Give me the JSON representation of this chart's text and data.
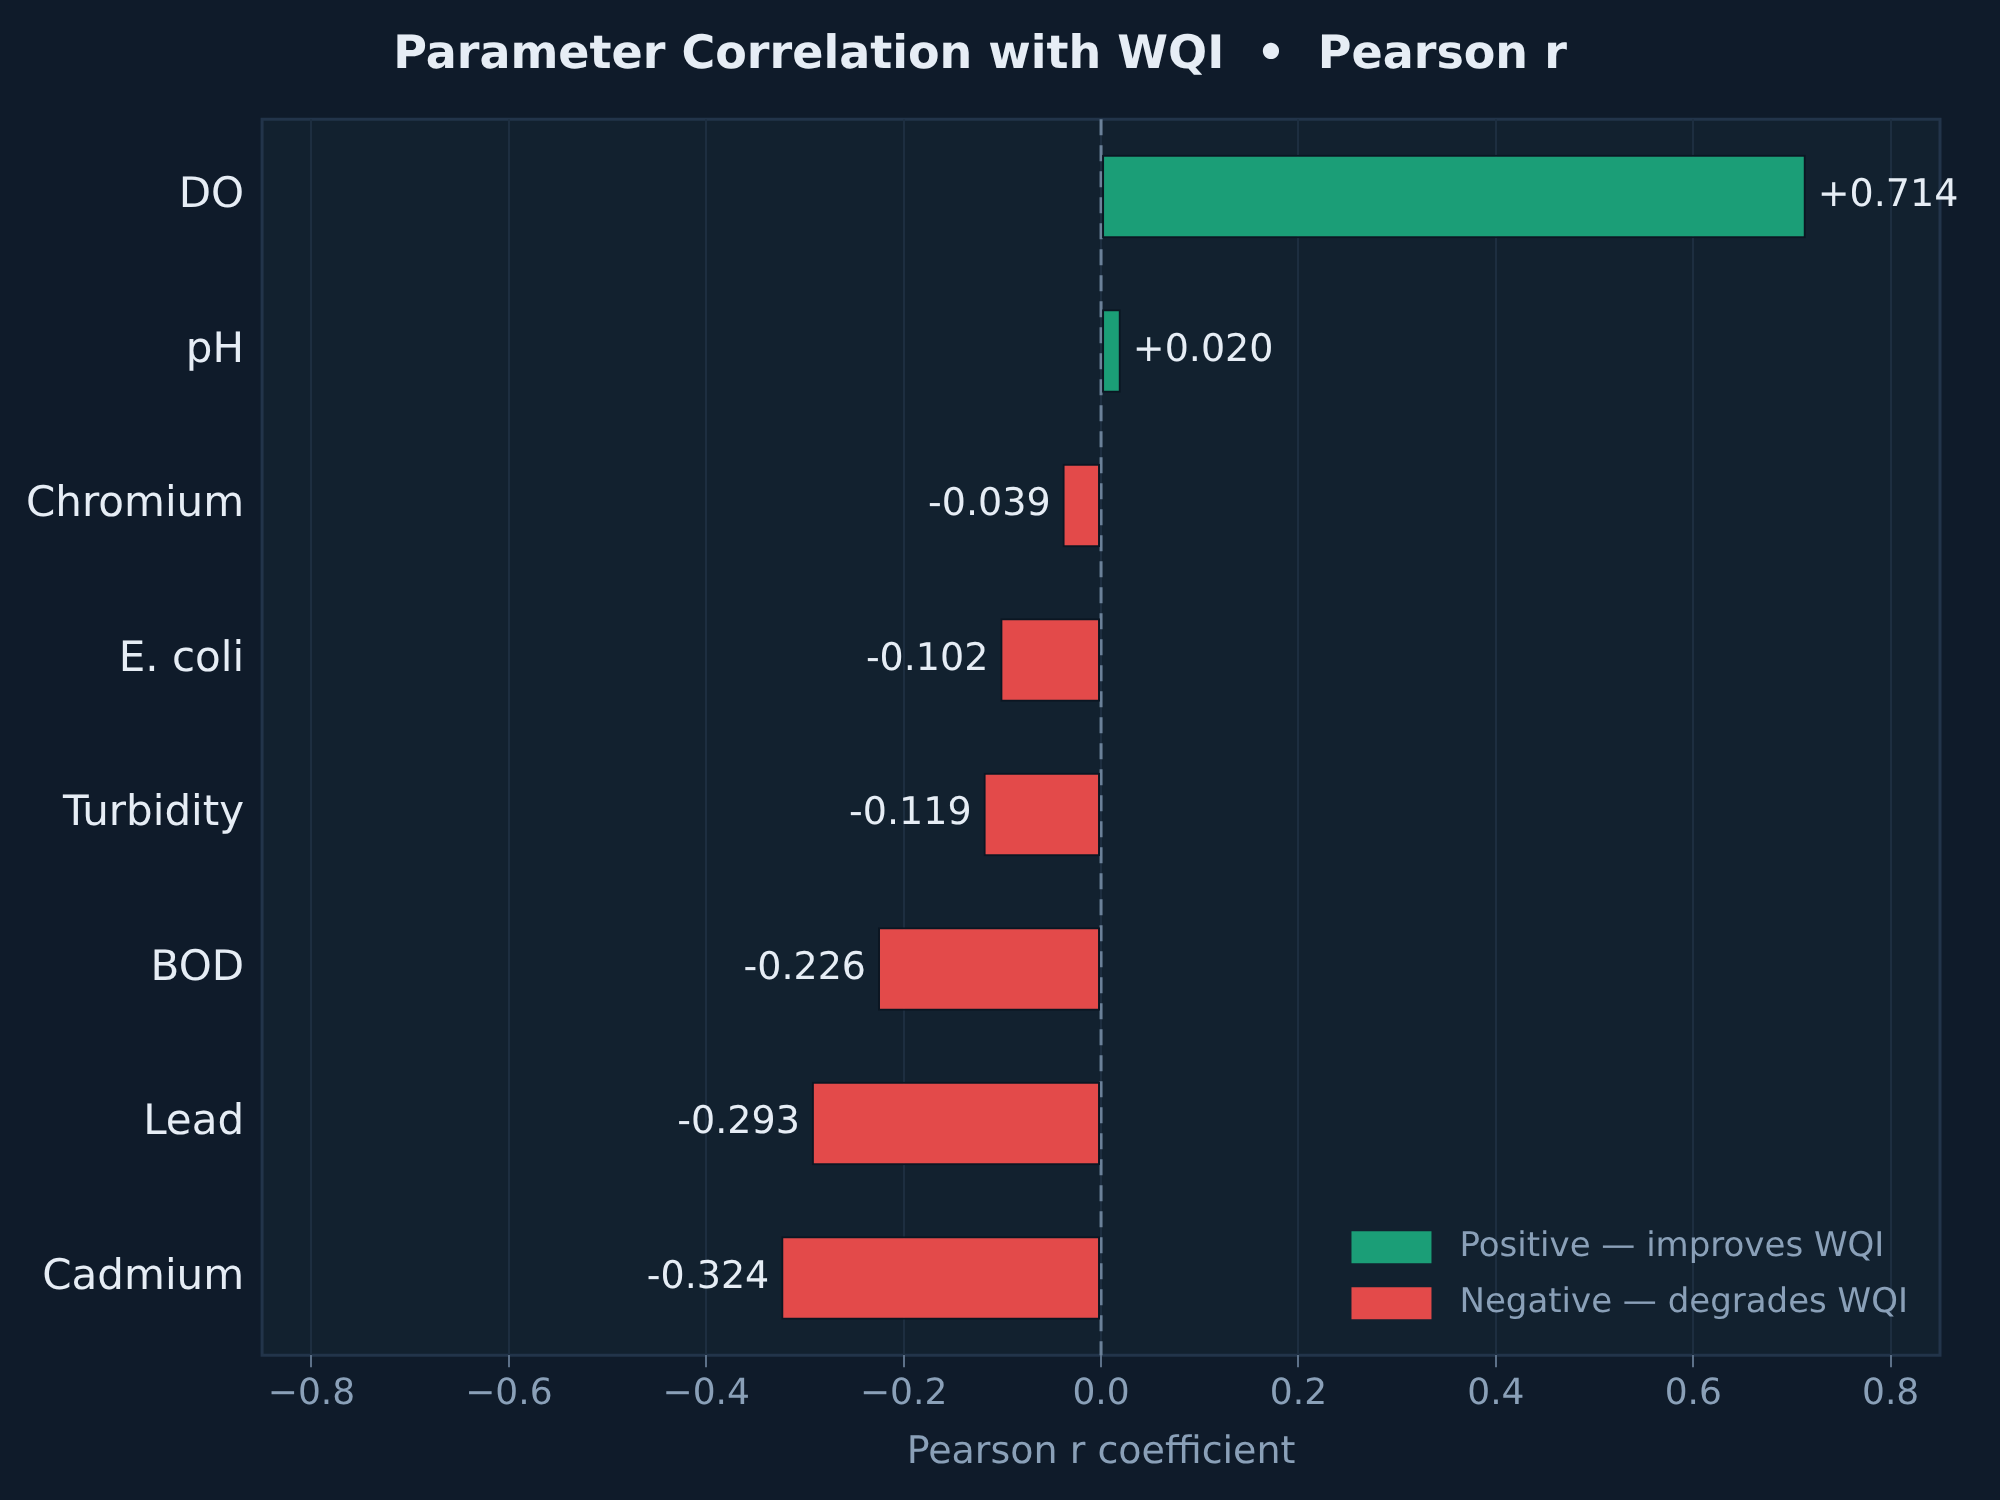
{
  "chart_data": {
    "type": "bar",
    "orientation": "horizontal",
    "stacked": true,
    "title": "Parameter Correlation with WQI  •  Pearson r",
    "xlabel": "Pearson r coefficient",
    "categories": [
      "DO",
      "pH",
      "Chromium",
      "E. coli",
      "Turbidity",
      "BOD",
      "Lead",
      "Cadmium"
    ],
    "series": [
      {
        "name": "Positive — improves WQI",
        "color": "#1b9e77",
        "values": [
          0.714,
          0.02,
          null,
          null,
          null,
          null,
          null,
          null
        ],
        "value_labels": [
          "+0.714",
          "+0.020",
          null,
          null,
          null,
          null,
          null,
          null
        ]
      },
      {
        "name": "Negative — degrades WQI",
        "color": "#e34a4a",
        "values": [
          null,
          null,
          -0.039,
          -0.102,
          -0.119,
          -0.226,
          -0.293,
          -0.324
        ],
        "value_labels": [
          null,
          null,
          "-0.039",
          "-0.102",
          "-0.119",
          "-0.226",
          "-0.293",
          "-0.324"
        ]
      }
    ],
    "xlim": [
      -0.85,
      0.85
    ],
    "xticks": [
      {
        "value": -0.8,
        "label": "−0.8"
      },
      {
        "value": -0.6,
        "label": "−0.6"
      },
      {
        "value": -0.4,
        "label": "−0.4"
      },
      {
        "value": -0.2,
        "label": "−0.2"
      },
      {
        "value": 0,
        "label": "0.0"
      },
      {
        "value": 0.2,
        "label": "0.2"
      },
      {
        "value": 0.4,
        "label": "0.4"
      },
      {
        "value": 0.6,
        "label": "0.6"
      },
      {
        "value": 0.8,
        "label": "0.8"
      }
    ],
    "ref_lines": [
      {
        "axis": "x",
        "value": 0,
        "color": "#6b8199",
        "line_style": "dashed"
      }
    ],
    "grid": "x",
    "legend": "bottom right"
  }
}
